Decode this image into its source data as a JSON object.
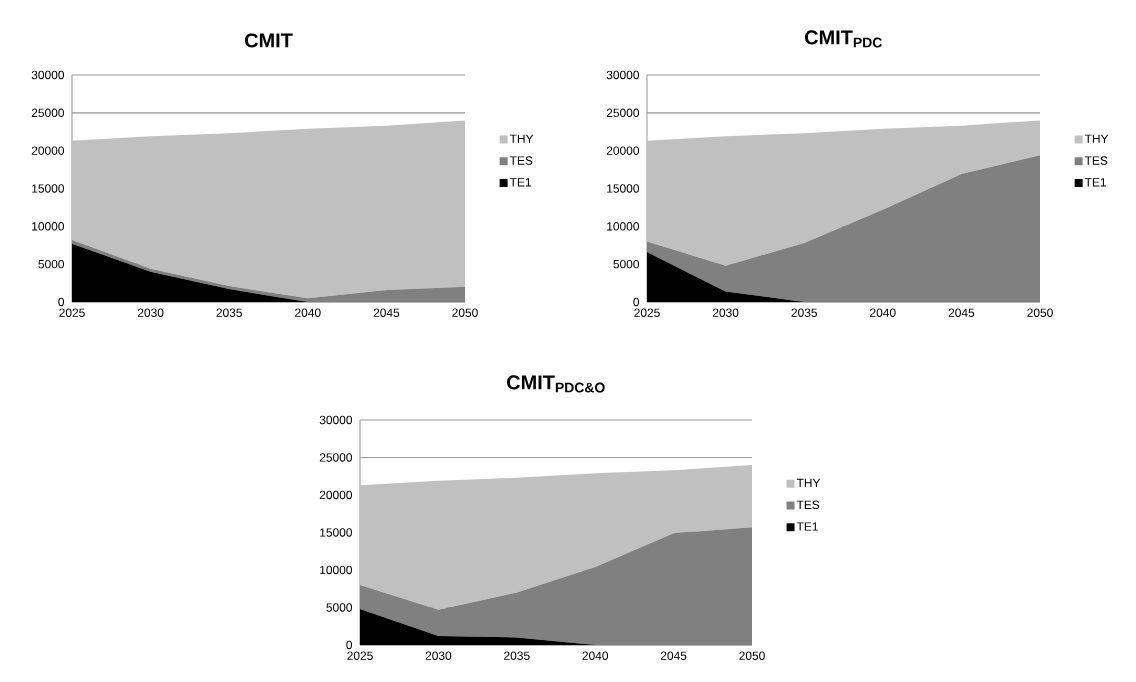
{
  "chart_data": [
    {
      "type": "area",
      "title": "CMIT",
      "stacked": true,
      "grid": "y",
      "legend": "right",
      "x": [
        2025,
        2030,
        2035,
        2040,
        2045,
        2050
      ],
      "xlim": [
        2025,
        2050
      ],
      "xticks": [
        2025,
        2030,
        2035,
        2040,
        2045,
        2050
      ],
      "ylim": [
        0,
        30000
      ],
      "yticks": [
        0,
        5000,
        10000,
        15000,
        20000,
        25000,
        30000
      ],
      "series": [
        {
          "name": "TE1",
          "color": "#000000",
          "values": [
            7700,
            4000,
            1700,
            0,
            0,
            0
          ]
        },
        {
          "name": "TES",
          "color": "#808080",
          "values": [
            500,
            400,
            400,
            500,
            1600,
            2000
          ]
        },
        {
          "name": "THY",
          "color": "#c0c0c0",
          "values": [
            13100,
            17500,
            20200,
            22400,
            21700,
            22000
          ]
        }
      ]
    },
    {
      "type": "area",
      "title": "CMIT$_{PDC}$",
      "stacked": true,
      "grid": "y",
      "legend": "right",
      "x": [
        2025,
        2030,
        2035,
        2040,
        2045,
        2050
      ],
      "xlim": [
        2025,
        2050
      ],
      "xticks": [
        2025,
        2030,
        2035,
        2040,
        2045,
        2050
      ],
      "ylim": [
        0,
        30000
      ],
      "yticks": [
        0,
        5000,
        10000,
        15000,
        20000,
        25000,
        30000
      ],
      "series": [
        {
          "name": "TE1",
          "color": "#000000",
          "values": [
            6600,
            1400,
            0,
            0,
            0,
            0
          ]
        },
        {
          "name": "TES",
          "color": "#808080",
          "values": [
            1400,
            3400,
            7800,
            12200,
            16900,
            19400
          ]
        },
        {
          "name": "THY",
          "color": "#c0c0c0",
          "values": [
            13300,
            17100,
            14500,
            10700,
            6400,
            4600
          ]
        }
      ]
    },
    {
      "type": "area",
      "title": "CMIT$_{PDC&O}$",
      "stacked": true,
      "grid": "y",
      "legend": "right",
      "x": [
        2025,
        2030,
        2035,
        2040,
        2045,
        2050
      ],
      "xlim": [
        2025,
        2050
      ],
      "xticks": [
        2025,
        2030,
        2035,
        2040,
        2045,
        2050
      ],
      "ylim": [
        0,
        30000
      ],
      "yticks": [
        0,
        5000,
        10000,
        15000,
        20000,
        25000,
        30000
      ],
      "series": [
        {
          "name": "TE1",
          "color": "#000000",
          "values": [
            4800,
            1200,
            1000,
            0,
            0,
            0
          ]
        },
        {
          "name": "TES",
          "color": "#808080",
          "values": [
            3200,
            3500,
            6000,
            10400,
            14900,
            15700
          ]
        },
        {
          "name": "THY",
          "color": "#c0c0c0",
          "values": [
            13300,
            17200,
            15300,
            12500,
            8400,
            8300
          ]
        }
      ]
    }
  ]
}
